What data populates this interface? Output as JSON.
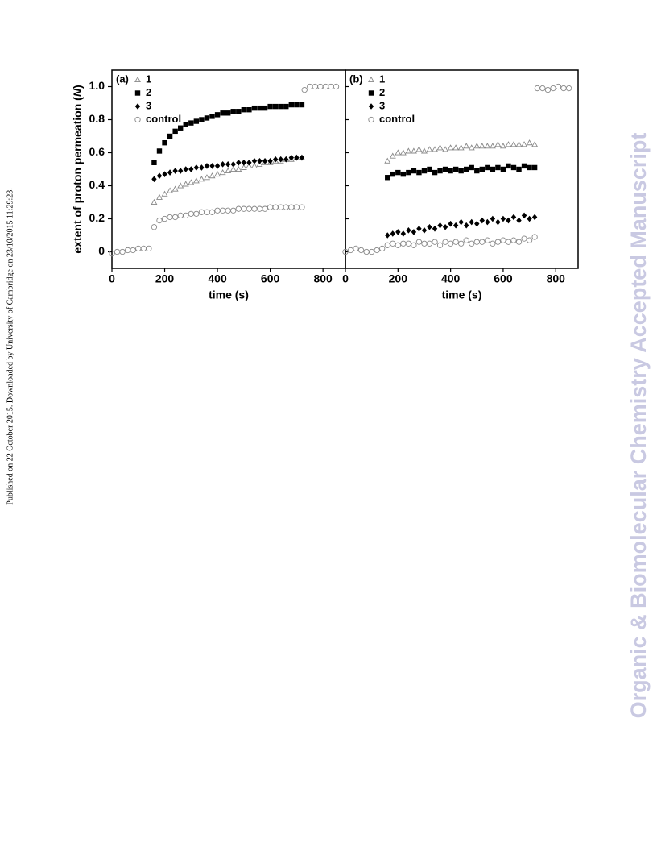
{
  "side_note": "Published on 22 October 2015. Downloaded by University of Cambridge on 23/10/2015 11:29:23.",
  "watermark": "Organic & Biomolecular Chemistry Accepted Manuscript",
  "y_label_parts": [
    "extent of proton permeation (",
    "N",
    ")"
  ],
  "chart_data": [
    {
      "type": "scatter",
      "panel_label": "(a)",
      "xlabel": "time (s)",
      "xlim": [
        0,
        885
      ],
      "xticks": [
        0,
        200,
        400,
        600,
        800
      ],
      "ylim": [
        -0.1,
        1.1
      ],
      "yticks": [
        0,
        0.2,
        0.4,
        0.6,
        0.8,
        {
          "value": 1,
          "label": "1.0"
        }
      ],
      "series": [
        {
          "name": "1",
          "marker": "triangle",
          "color": "#888888",
          "x": [
            160,
            180,
            200,
            220,
            240,
            260,
            280,
            300,
            320,
            340,
            360,
            380,
            400,
            420,
            440,
            460,
            480,
            500,
            520,
            540,
            560,
            580,
            600,
            620,
            640,
            660,
            680,
            700,
            720
          ],
          "values": [
            0.3,
            0.33,
            0.35,
            0.37,
            0.38,
            0.4,
            0.41,
            0.42,
            0.43,
            0.44,
            0.45,
            0.46,
            0.47,
            0.48,
            0.49,
            0.5,
            0.5,
            0.51,
            0.52,
            0.52,
            0.53,
            0.54,
            0.54,
            0.55,
            0.55,
            0.56,
            0.56,
            0.57,
            0.57
          ]
        },
        {
          "name": "2",
          "marker": "square",
          "color": "#000000",
          "x": [
            160,
            180,
            200,
            220,
            240,
            260,
            280,
            300,
            320,
            340,
            360,
            380,
            400,
            420,
            440,
            460,
            480,
            500,
            520,
            540,
            560,
            580,
            600,
            620,
            640,
            660,
            680,
            700,
            720
          ],
          "values": [
            0.54,
            0.61,
            0.66,
            0.7,
            0.73,
            0.75,
            0.77,
            0.78,
            0.79,
            0.8,
            0.81,
            0.82,
            0.83,
            0.84,
            0.84,
            0.85,
            0.85,
            0.86,
            0.86,
            0.87,
            0.87,
            0.87,
            0.88,
            0.88,
            0.88,
            0.88,
            0.89,
            0.89,
            0.89
          ]
        },
        {
          "name": "3",
          "marker": "diamond",
          "color": "#000000",
          "x": [
            160,
            180,
            200,
            220,
            240,
            260,
            280,
            300,
            320,
            340,
            360,
            380,
            400,
            420,
            440,
            460,
            480,
            500,
            520,
            540,
            560,
            580,
            600,
            620,
            640,
            660,
            680,
            700,
            720
          ],
          "values": [
            0.44,
            0.46,
            0.47,
            0.48,
            0.49,
            0.49,
            0.5,
            0.5,
            0.51,
            0.51,
            0.52,
            0.52,
            0.52,
            0.53,
            0.53,
            0.53,
            0.54,
            0.54,
            0.54,
            0.55,
            0.55,
            0.55,
            0.55,
            0.56,
            0.56,
            0.56,
            0.57,
            0.57,
            0.57
          ]
        },
        {
          "name": "control",
          "marker": "circle",
          "color": "#888888",
          "x": [
            0,
            20,
            40,
            60,
            80,
            100,
            120,
            140,
            160,
            180,
            200,
            220,
            240,
            260,
            280,
            300,
            320,
            340,
            360,
            380,
            400,
            420,
            440,
            460,
            480,
            500,
            520,
            540,
            560,
            580,
            600,
            620,
            640,
            660,
            680,
            700,
            720,
            730,
            750,
            770,
            790,
            810,
            830,
            850
          ],
          "values": [
            -0.01,
            0,
            0,
            0.01,
            0.01,
            0.02,
            0.02,
            0.02,
            0.15,
            0.19,
            0.2,
            0.21,
            0.21,
            0.22,
            0.22,
            0.23,
            0.23,
            0.24,
            0.24,
            0.24,
            0.25,
            0.25,
            0.25,
            0.25,
            0.26,
            0.26,
            0.26,
            0.26,
            0.26,
            0.26,
            0.27,
            0.27,
            0.27,
            0.27,
            0.27,
            0.27,
            0.27,
            0.98,
            1,
            1,
            1,
            1,
            1,
            1
          ]
        }
      ]
    },
    {
      "type": "scatter",
      "panel_label": "(b)",
      "xlabel": "time (s)",
      "xlim": [
        0,
        885
      ],
      "xticks": [
        0,
        200,
        400,
        600,
        800
      ],
      "ylim": [
        -0.1,
        1.1
      ],
      "series": [
        {
          "name": "1",
          "marker": "triangle",
          "color": "#888888",
          "x": [
            160,
            180,
            200,
            220,
            240,
            260,
            280,
            300,
            320,
            340,
            360,
            380,
            400,
            420,
            440,
            460,
            480,
            500,
            520,
            540,
            560,
            580,
            600,
            620,
            640,
            660,
            680,
            700,
            720
          ],
          "values": [
            0.55,
            0.58,
            0.6,
            0.6,
            0.61,
            0.61,
            0.62,
            0.61,
            0.62,
            0.62,
            0.63,
            0.62,
            0.63,
            0.63,
            0.63,
            0.64,
            0.63,
            0.64,
            0.64,
            0.64,
            0.64,
            0.65,
            0.64,
            0.65,
            0.65,
            0.65,
            0.65,
            0.66,
            0.65
          ]
        },
        {
          "name": "2",
          "marker": "square",
          "color": "#000000",
          "x": [
            160,
            180,
            200,
            220,
            240,
            260,
            280,
            300,
            320,
            340,
            360,
            380,
            400,
            420,
            440,
            460,
            480,
            500,
            520,
            540,
            560,
            580,
            600,
            620,
            640,
            660,
            680,
            700,
            720
          ],
          "values": [
            0.45,
            0.47,
            0.48,
            0.47,
            0.48,
            0.49,
            0.48,
            0.49,
            0.5,
            0.48,
            0.49,
            0.5,
            0.49,
            0.5,
            0.49,
            0.5,
            0.51,
            0.49,
            0.5,
            0.51,
            0.5,
            0.51,
            0.5,
            0.52,
            0.51,
            0.5,
            0.52,
            0.51,
            0.51
          ]
        },
        {
          "name": "3",
          "marker": "diamond",
          "color": "#000000",
          "x": [
            160,
            180,
            200,
            220,
            240,
            260,
            280,
            300,
            320,
            340,
            360,
            380,
            400,
            420,
            440,
            460,
            480,
            500,
            520,
            540,
            560,
            580,
            600,
            620,
            640,
            660,
            680,
            700,
            720
          ],
          "values": [
            0.1,
            0.11,
            0.12,
            0.11,
            0.13,
            0.12,
            0.14,
            0.13,
            0.15,
            0.14,
            0.16,
            0.15,
            0.17,
            0.16,
            0.18,
            0.16,
            0.18,
            0.17,
            0.19,
            0.18,
            0.2,
            0.18,
            0.2,
            0.19,
            0.21,
            0.19,
            0.22,
            0.2,
            0.21
          ]
        },
        {
          "name": "control",
          "marker": "circle",
          "color": "#888888",
          "x": [
            0,
            20,
            40,
            60,
            80,
            100,
            120,
            140,
            160,
            180,
            200,
            220,
            240,
            260,
            280,
            300,
            320,
            340,
            360,
            380,
            400,
            420,
            440,
            460,
            480,
            500,
            520,
            540,
            560,
            580,
            600,
            620,
            640,
            660,
            680,
            700,
            720,
            730,
            750,
            770,
            790,
            810,
            830,
            850
          ],
          "values": [
            0,
            0.01,
            0.02,
            0.01,
            0,
            0,
            0.01,
            0.02,
            0.04,
            0.05,
            0.04,
            0.05,
            0.05,
            0.04,
            0.06,
            0.05,
            0.05,
            0.06,
            0.04,
            0.06,
            0.05,
            0.06,
            0.05,
            0.07,
            0.05,
            0.06,
            0.06,
            0.07,
            0.05,
            0.06,
            0.07,
            0.06,
            0.07,
            0.06,
            0.08,
            0.07,
            0.09,
            0.99,
            0.99,
            0.98,
            0.99,
            1,
            0.99,
            0.99
          ]
        }
      ]
    }
  ]
}
